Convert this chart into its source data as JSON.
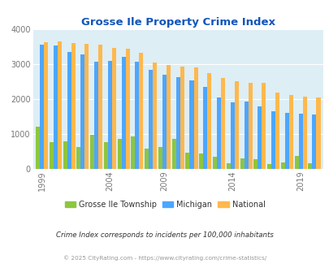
{
  "title": "Grosse Ile Property Crime Index",
  "subtitle": "Crime Index corresponds to incidents per 100,000 inhabitants",
  "footer": "© 2025 CityRating.com - https://www.cityrating.com/crime-statistics/",
  "years": [
    1999,
    2000,
    2001,
    2002,
    2003,
    2004,
    2005,
    2006,
    2008,
    2009,
    2010,
    2011,
    2012,
    2013,
    2014,
    2015,
    2016,
    2017,
    2018,
    2019,
    2020
  ],
  "grosse_ile": [
    1220,
    760,
    800,
    620,
    980,
    760,
    870,
    940,
    570,
    630,
    850,
    460,
    430,
    350,
    170,
    300,
    280,
    130,
    195,
    360,
    170
  ],
  "michigan": [
    3560,
    3530,
    3350,
    3280,
    3070,
    3100,
    3220,
    3080,
    2840,
    2700,
    2630,
    2540,
    2350,
    2050,
    1910,
    1940,
    1800,
    1650,
    1610,
    1580,
    1550
  ],
  "national": [
    3630,
    3650,
    3620,
    3590,
    3560,
    3470,
    3450,
    3340,
    3060,
    2970,
    2940,
    2910,
    2750,
    2620,
    2510,
    2480,
    2460,
    2200,
    2110,
    2080,
    2050
  ],
  "tick_years": [
    1999,
    2004,
    2009,
    2014,
    2019
  ],
  "color_grosse_ile": "#8dc63f",
  "color_michigan": "#4da6ff",
  "color_national": "#ffb84d",
  "bg_color": "#ddeef5",
  "title_color": "#1155bb",
  "subtitle_color": "#333333",
  "footer_color": "#999999",
  "tick_color": "#777777",
  "ylim": [
    0,
    4000
  ],
  "yticks": [
    0,
    1000,
    2000,
    3000,
    4000
  ]
}
